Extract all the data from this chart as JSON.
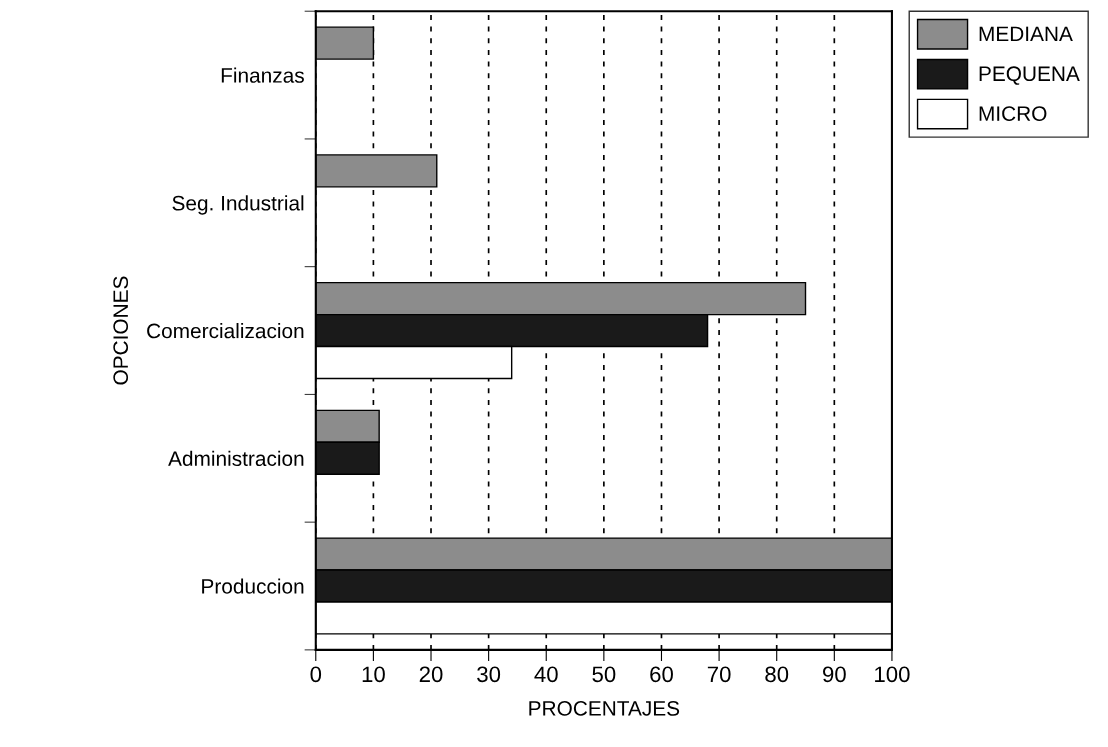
{
  "chart_data": {
    "type": "bar",
    "orientation": "horizontal",
    "xlabel": "PROCENTAJES",
    "ylabel": "OPCIONES",
    "categories": [
      "Finanzas",
      "Seg. Industrial",
      "Comercializacion",
      "Administracion",
      "Produccion"
    ],
    "series": [
      {
        "name": "MEDIANA",
        "color": "#8c8c8c",
        "values": [
          10,
          21,
          85,
          11,
          100
        ]
      },
      {
        "name": "PEQUENA",
        "color": "#1a1a1a",
        "values": [
          null,
          null,
          68,
          11,
          100
        ]
      },
      {
        "name": "MICRO",
        "color": "#ffffff",
        "values": [
          null,
          null,
          34,
          null,
          100
        ]
      }
    ],
    "xlim": [
      0,
      100
    ],
    "xticks": [
      0,
      10,
      20,
      30,
      40,
      50,
      60,
      70,
      80,
      90,
      100
    ],
    "grid": "x",
    "legend": "top right"
  }
}
